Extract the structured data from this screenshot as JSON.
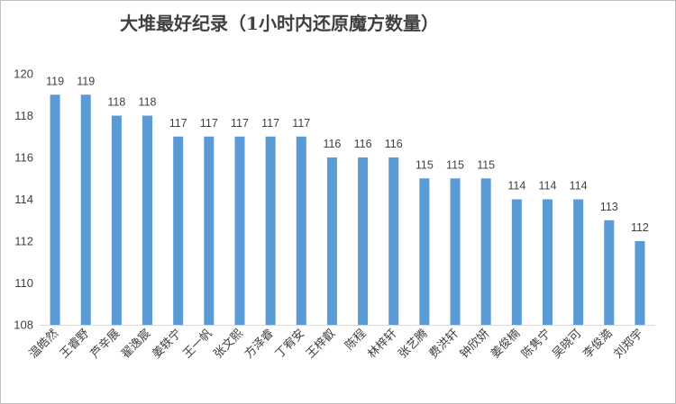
{
  "chart_data": {
    "type": "bar",
    "title": "大堆最好纪录（1小时内还原魔方数量）",
    "xlabel": "",
    "ylabel": "",
    "ylim": [
      108,
      120
    ],
    "yticks": [
      108,
      110,
      112,
      114,
      116,
      118,
      120
    ],
    "grid": false,
    "legend": "none",
    "bar_color": "#5b9bd5",
    "categories": [
      "温皓然",
      "王睿野",
      "芦辛展",
      "翟逸宸",
      "姜轶宁",
      "王一帆",
      "张文熙",
      "方泽睿",
      "丁宥安",
      "王梓叡",
      "陈程",
      "林梓轩",
      "张艺腾",
      "费洪轩",
      "钟欣妍",
      "姜俊楠",
      "陈隽宁",
      "吴晓可",
      "李俊澔",
      "刘郑宇"
    ],
    "values": [
      119,
      119,
      118,
      118,
      117,
      117,
      117,
      117,
      117,
      116,
      116,
      116,
      115,
      115,
      115,
      114,
      114,
      114,
      113,
      112
    ]
  }
}
